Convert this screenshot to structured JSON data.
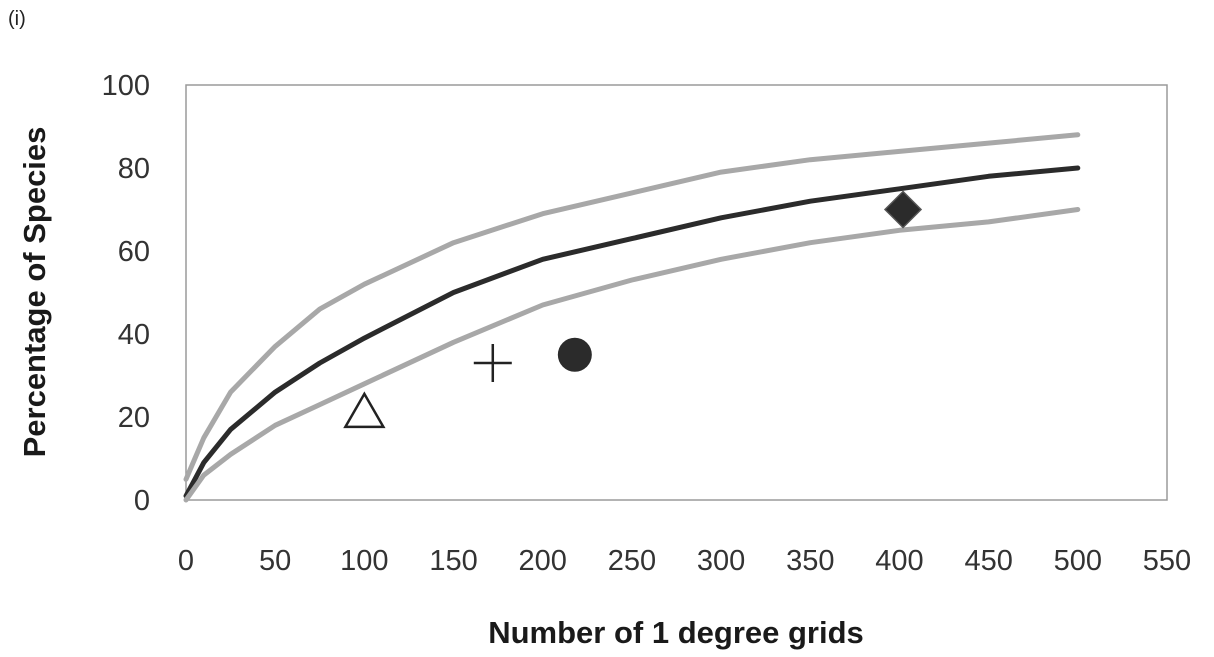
{
  "panel_label": "(i)",
  "chart_data": {
    "type": "line",
    "title": "",
    "xlabel": "Number of 1 degree grids",
    "ylabel": "Percentage of Species",
    "xlim": [
      0,
      550
    ],
    "ylim": [
      0,
      100
    ],
    "xticks": [
      "0",
      "50",
      "100",
      "150",
      "200",
      "250",
      "300",
      "350",
      "400",
      "450",
      "500",
      "550"
    ],
    "yticks": [
      "0",
      "20",
      "40",
      "60",
      "80",
      "100"
    ],
    "grid": false,
    "legend": "none",
    "series": [
      {
        "role": "upper-bound",
        "color": "#a8a8a8",
        "x": [
          0,
          5,
          10,
          25,
          50,
          75,
          100,
          150,
          200,
          250,
          300,
          350,
          400,
          450,
          500
        ],
        "y": [
          5,
          10,
          15,
          26,
          37,
          46,
          52,
          62,
          69,
          74,
          79,
          82,
          84,
          86,
          88
        ]
      },
      {
        "role": "mean",
        "color": "#2b2b2b",
        "x": [
          0,
          5,
          10,
          25,
          50,
          75,
          100,
          150,
          200,
          250,
          300,
          350,
          400,
          450,
          500
        ],
        "y": [
          1,
          5,
          9,
          17,
          26,
          33,
          39,
          50,
          58,
          63,
          68,
          72,
          75,
          78,
          80
        ]
      },
      {
        "role": "lower-bound",
        "color": "#a8a8a8",
        "x": [
          0,
          5,
          10,
          25,
          50,
          75,
          100,
          150,
          200,
          250,
          300,
          350,
          400,
          450,
          500
        ],
        "y": [
          0,
          3,
          6,
          11,
          18,
          23,
          28,
          38,
          47,
          53,
          58,
          62,
          65,
          67,
          70
        ]
      }
    ],
    "points": [
      {
        "marker": "triangle-open",
        "x": 100,
        "y": 21,
        "color": "#222222"
      },
      {
        "marker": "plus",
        "x": 172,
        "y": 33,
        "color": "#222222"
      },
      {
        "marker": "circle-filled",
        "x": 218,
        "y": 35,
        "color": "#2b2b2b"
      },
      {
        "marker": "diamond-filled",
        "x": 402,
        "y": 70,
        "color": "#2b2b2b"
      }
    ]
  }
}
